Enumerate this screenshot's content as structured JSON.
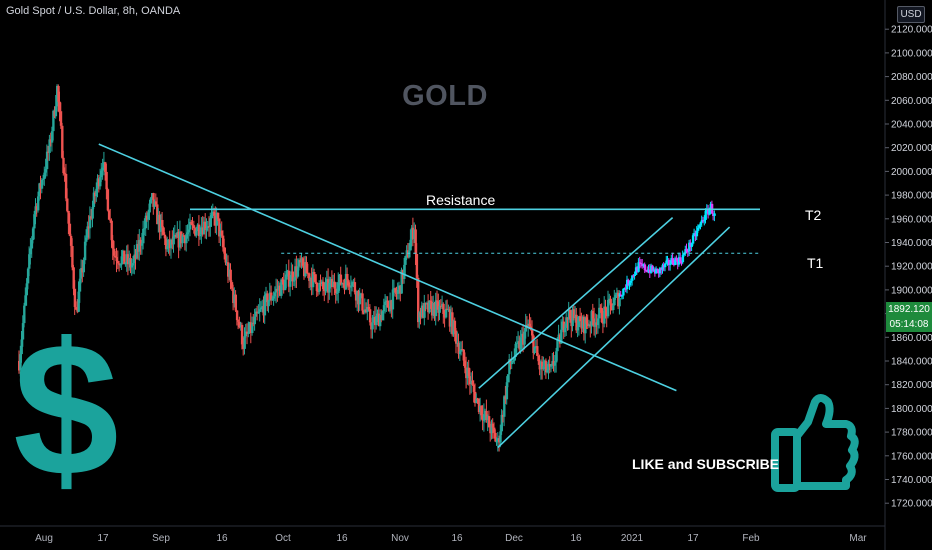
{
  "header": {
    "symbol_title": "Gold Spot / U.S. Dollar, 8h, OANDA",
    "currency": "USD"
  },
  "overlay": {
    "heading": "GOLD",
    "resistance_label": "Resistance",
    "t2_label": "T2",
    "t1_label": "T1",
    "cta": "LIKE and SUBSCRIBE",
    "dollar_icon": "dollar-sign-icon",
    "thumbs_icon": "thumbs-up-icon",
    "icon_color": "#1ba39c"
  },
  "price_tags": {
    "last_price": "1892.120",
    "countdown": "05:14:08"
  },
  "colors": {
    "up": "#26a69a",
    "down": "#ef5350",
    "line": "#4dd0e1",
    "projection_up": "#00e5ff",
    "projection_down": "#e040fb",
    "tag": "#1e8a3c"
  },
  "chart_data": {
    "type": "candlestick",
    "instrument": "Gold Spot / U.S. Dollar",
    "timeframe": "8h",
    "x_labels": [
      "Aug",
      "17",
      "Sep",
      "16",
      "Oct",
      "16",
      "Nov",
      "16",
      "Dec",
      "16",
      "2021",
      "17",
      "Feb",
      "Mar"
    ],
    "y_ticks": [
      1720,
      1740,
      1760,
      1780,
      1800,
      1820,
      1840,
      1860,
      1880,
      1900,
      1920,
      1940,
      1960,
      1980,
      2000,
      2020,
      2040,
      2060,
      2080,
      2100,
      2120
    ],
    "ylim": [
      1710,
      2132
    ],
    "path_points": [
      {
        "date": "2020-07-27",
        "price": 1840
      },
      {
        "date": "2020-07-31",
        "price": 1965
      },
      {
        "date": "2020-08-04",
        "price": 2020
      },
      {
        "date": "2020-08-06",
        "price": 2070
      },
      {
        "date": "2020-08-11",
        "price": 1880
      },
      {
        "date": "2020-08-14",
        "price": 1950
      },
      {
        "date": "2020-08-18",
        "price": 2010
      },
      {
        "date": "2020-08-21",
        "price": 1930
      },
      {
        "date": "2020-08-26",
        "price": 1920
      },
      {
        "date": "2020-08-31",
        "price": 1975
      },
      {
        "date": "2020-09-04",
        "price": 1935
      },
      {
        "date": "2020-09-10",
        "price": 1950
      },
      {
        "date": "2020-09-17",
        "price": 1960
      },
      {
        "date": "2020-09-21",
        "price": 1900
      },
      {
        "date": "2020-09-24",
        "price": 1855
      },
      {
        "date": "2020-09-30",
        "price": 1890
      },
      {
        "date": "2020-10-09",
        "price": 1920
      },
      {
        "date": "2020-10-15",
        "price": 1900
      },
      {
        "date": "2020-10-22",
        "price": 1910
      },
      {
        "date": "2020-10-28",
        "price": 1870
      },
      {
        "date": "2020-11-04",
        "price": 1900
      },
      {
        "date": "2020-11-08",
        "price": 1955
      },
      {
        "date": "2020-11-09",
        "price": 1880
      },
      {
        "date": "2020-11-13",
        "price": 1885
      },
      {
        "date": "2020-11-17",
        "price": 1880
      },
      {
        "date": "2020-11-24",
        "price": 1810
      },
      {
        "date": "2020-11-30",
        "price": 1770
      },
      {
        "date": "2020-12-03",
        "price": 1835
      },
      {
        "date": "2020-12-08",
        "price": 1870
      },
      {
        "date": "2020-12-11",
        "price": 1835
      },
      {
        "date": "2020-12-14",
        "price": 1830
      },
      {
        "date": "2020-12-18",
        "price": 1880
      },
      {
        "date": "2020-12-22",
        "price": 1870
      },
      {
        "date": "2020-12-28",
        "price": 1880
      },
      {
        "date": "2021-01-01",
        "price": 1895
      }
    ],
    "projection_points": [
      {
        "date": "2021-01-01",
        "price": 1895
      },
      {
        "date": "2021-01-06",
        "price": 1920
      },
      {
        "date": "2021-01-11",
        "price": 1915
      },
      {
        "date": "2021-01-15",
        "price": 1925
      },
      {
        "date": "2021-01-17",
        "price": 1925
      },
      {
        "date": "2021-01-20",
        "price": 1940
      },
      {
        "date": "2021-01-23",
        "price": 1960
      },
      {
        "date": "2021-01-25",
        "price": 1970
      },
      {
        "date": "2021-01-26",
        "price": 1962
      }
    ],
    "lines": [
      {
        "name": "resistance",
        "from": {
          "date": "2020-09-10",
          "price": 1968
        },
        "to": {
          "date": "2021-02-07",
          "price": 1968
        }
      },
      {
        "name": "t1-level",
        "from": {
          "date": "2020-10-04",
          "price": 1931
        },
        "to": {
          "date": "2021-02-07",
          "price": 1931
        },
        "dashed": true
      },
      {
        "name": "descending-trendline",
        "from": {
          "date": "2020-08-17",
          "price": 2023
        },
        "to": {
          "date": "2021-01-16",
          "price": 1815
        }
      },
      {
        "name": "channel-lower",
        "from": {
          "date": "2020-11-30",
          "price": 1767
        },
        "to": {
          "date": "2021-01-30",
          "price": 1953
        }
      },
      {
        "name": "channel-upper",
        "from": {
          "date": "2020-11-25",
          "price": 1817
        },
        "to": {
          "date": "2021-01-15",
          "price": 1961
        }
      }
    ]
  }
}
